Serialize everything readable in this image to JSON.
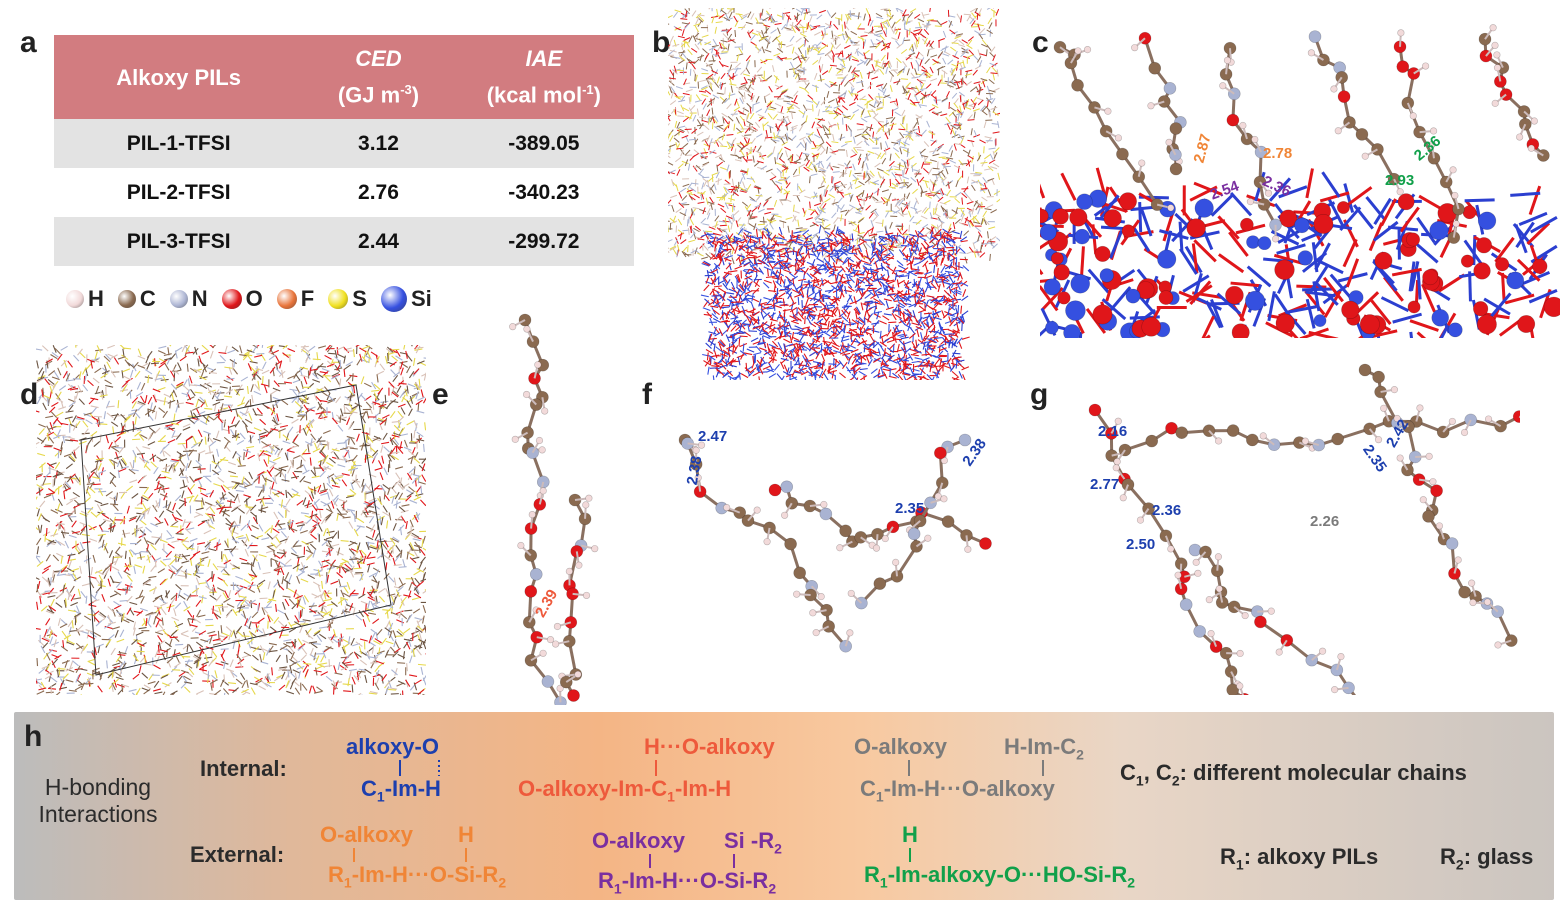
{
  "panel_labels": {
    "a": "a",
    "b": "b",
    "c": "c",
    "d": "d",
    "e": "e",
    "f": "f",
    "g": "g",
    "h": "h"
  },
  "table": {
    "col1": "Alkoxy PILs",
    "col2_name": "CED",
    "col2_unit_pre": "(GJ m",
    "col2_unit_sup": "-3",
    "col2_unit_post": ")",
    "col3_name": "IAE",
    "col3_unit_pre": "(kcal mol",
    "col3_unit_sup": "-1",
    "col3_unit_post": ")",
    "rows": [
      {
        "name": "PIL-1-TFSI",
        "ced": "3.12",
        "iae": "-389.05"
      },
      {
        "name": "PIL-2-TFSI",
        "ced": "2.76",
        "iae": "-340.23"
      },
      {
        "name": "PIL-3-TFSI",
        "ced": "2.44",
        "iae": "-299.72"
      }
    ]
  },
  "atom_legend": [
    {
      "label": "H",
      "color": "#f2dada"
    },
    {
      "label": "C",
      "color": "#8a6a50"
    },
    {
      "label": "N",
      "color": "#aeb6d4"
    },
    {
      "label": "O",
      "color": "#e0161a"
    },
    {
      "label": "F",
      "color": "#e8743a"
    },
    {
      "label": "S",
      "color": "#f0e020"
    },
    {
      "label": "Si",
      "color": "#3550e0"
    }
  ],
  "distances": {
    "c": [
      "2.87",
      "2.78",
      "2.54",
      "2.36",
      "2.36",
      "2.93"
    ],
    "e": [
      "2.39"
    ],
    "f": [
      "2.47",
      "2.38",
      "2.38",
      "2.35"
    ],
    "g": [
      "2.16",
      "2.77",
      "2.36",
      "2.50",
      "2.26",
      "2.42",
      "2.35"
    ]
  },
  "h": {
    "title_line1": "H-bonding",
    "title_line2": "Interactions",
    "internal_label": "Internal:",
    "external_label": "External:",
    "int1_top": "alkoxy-O",
    "int1_bottom_a": "C",
    "int1_bottom_sub": "1",
    "int1_bottom_b": "-Im-H",
    "int2_top": "H···O-alkoxy",
    "int2_bottom_a": "O-alkoxy-Im-C",
    "int2_bottom_sub": "1",
    "int2_bottom_b": "-Im-H",
    "int3_top_a": "O-alkoxy",
    "int3_top_b": "H-Im-C",
    "int3_top_b_sub": "2",
    "int3_bottom_a": "C",
    "int3_bottom_sub": "1",
    "int3_bottom_b": "-Im-H···O-alkoxy",
    "note_c_a": "C",
    "note_c_sub1": "1",
    "note_c_mid": ", C",
    "note_c_sub2": "2",
    "note_c_b": ": different molecular chains",
    "ext1_top_a": "O-alkoxy",
    "ext1_top_b": "H",
    "ext1_bottom_a": "R",
    "ext1_bottom_sub": "1",
    "ext1_bottom_b": "-Im-H···O-Si-R",
    "ext1_bottom_sub2": "2",
    "ext2_top_a": "O-alkoxy",
    "ext2_top_b": "Si -R",
    "ext2_top_sub": "2",
    "ext2_bottom_a": "R",
    "ext2_bottom_sub": "1",
    "ext2_bottom_b": "-Im-H···O-Si-R",
    "ext2_bottom_sub2": "2",
    "ext3_top": "H",
    "ext3_bottom_a": "R",
    "ext3_bottom_sub": "1",
    "ext3_bottom_b": "-Im-alkoxy-O···HO-Si-R",
    "ext3_bottom_sub2": "2",
    "note_r1_a": "R",
    "note_r1_sub": "1",
    "note_r1_b": ": alkoxy PILs",
    "note_r2_a": "R",
    "note_r2_sub": "2",
    "note_r2_b": ": glass"
  }
}
